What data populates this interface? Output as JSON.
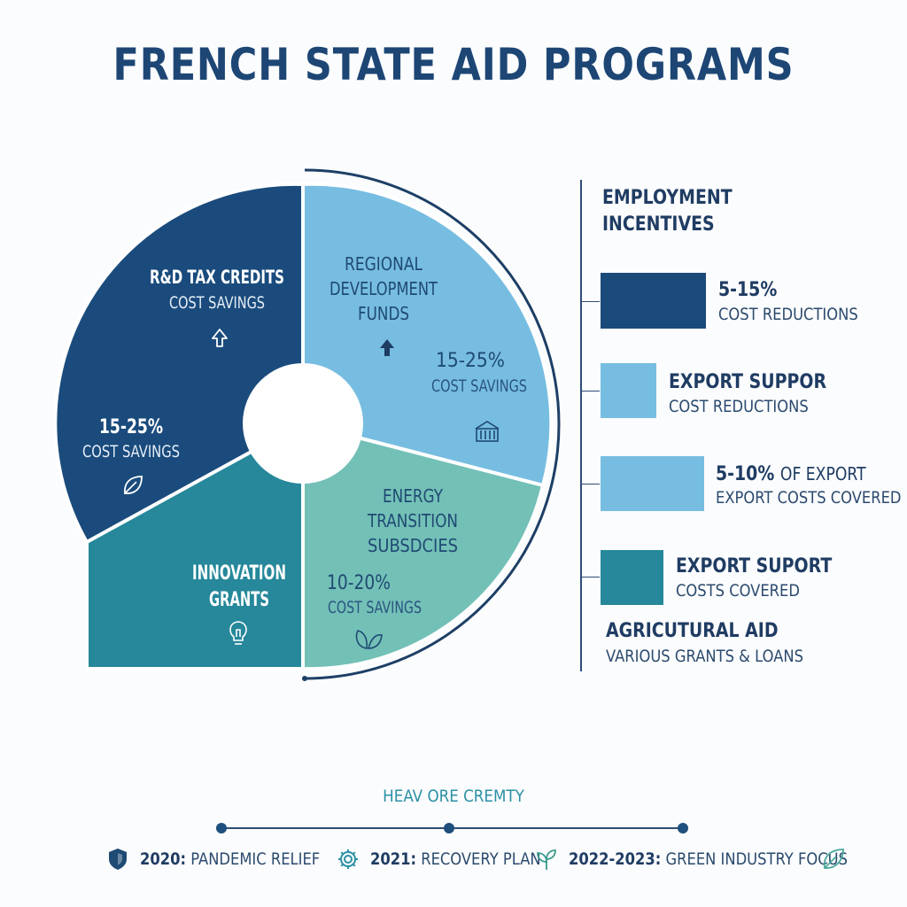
{
  "title": "FRENCH STATE AID PROGRAMS",
  "chart_data": {
    "type": "pie",
    "title": "FRENCH STATE AID PROGRAMS",
    "slices": [
      {
        "label": [
          "R&D TAX CREDITS"
        ],
        "sub": "COST SAVINGS",
        "value_label": "15-25%",
        "value_sub": "COST SAVINGS",
        "color": "#1a4b7c",
        "icon": "up-arrow-outline-icon",
        "icon2": "leaf-icon"
      },
      {
        "label": [
          "REGIONAL",
          "DEVELOPMENT",
          "FUNDS"
        ],
        "value_label": "15-25%",
        "value_sub": "COST SAVINGS",
        "color": "#77bde1",
        "icon": "up-arrow-icon",
        "icon2": "building-icon"
      },
      {
        "label": [
          "ENERGY",
          "TRANSITION",
          "SUBSDCIES"
        ],
        "value_label": "10-20%",
        "value_sub": "COST SAVINGS",
        "color": "#73c0b7",
        "icon": "leaves-icon"
      },
      {
        "label": [
          "INNOVATION",
          "GRANTS"
        ],
        "color": "#26889a",
        "icon": "lightbulb-icon"
      }
    ]
  },
  "legend": {
    "header": [
      "EMPLOYMENT",
      "INCENTIVES"
    ],
    "items": [
      {
        "bold": "5-15%",
        "thin": "COST REDUCTIONS",
        "color": "#1a4a7a"
      },
      {
        "bold": "EXPORT SUPPOR",
        "thin": "COST REDUCTIONS",
        "color": "#77bde1"
      },
      {
        "bold": "5-10%",
        "bold_extra": "OF EXPORT",
        "thin": "EXPORT COSTS COVERED",
        "color": "#77bde1"
      },
      {
        "bold": "EXPORT SUPORT",
        "thin": "COSTS COVERED",
        "color": "#26889a"
      }
    ],
    "footer": {
      "bold": "AGRICUTURAL AID",
      "thin": "VARIOUS GRANTS & LOANS"
    }
  },
  "timeline": {
    "heading": "HEAV ORE CREMTY",
    "items": [
      {
        "year": "2020:",
        "text": "PANDEMIC RELIEF",
        "icon": "shield-icon"
      },
      {
        "year": "2021:",
        "text": "RECOVERY PLAN",
        "icon": "gear-icon"
      },
      {
        "year": "2022-2023:",
        "text": "GREEN INDUSTRY FOCUS",
        "icon": "sprout-icon"
      }
    ],
    "end_icon": "leaf-icon"
  }
}
